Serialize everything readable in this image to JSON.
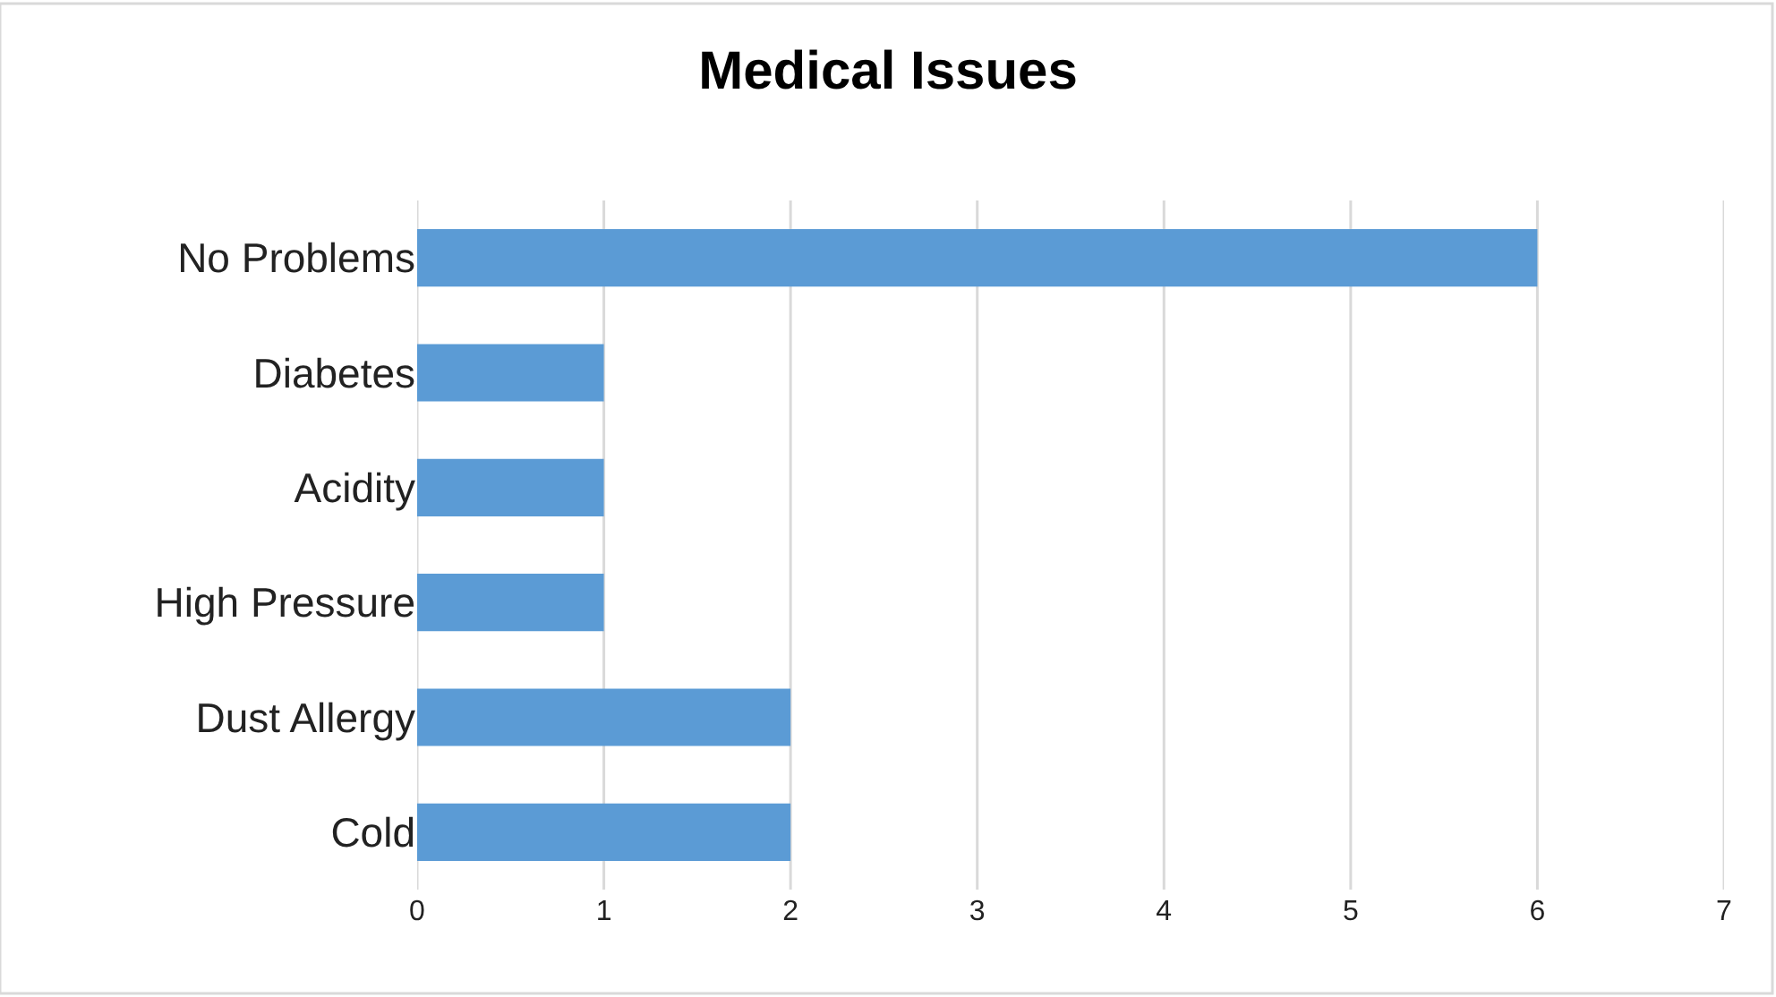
{
  "chart_data": {
    "type": "bar",
    "title": "Medical Issues",
    "orientation": "horizontal",
    "categories": [
      "No Problems",
      "Diabetes",
      "Acidity",
      "High Pressure",
      "Dust Allergy",
      "Cold"
    ],
    "values": [
      6,
      1,
      1,
      1,
      2,
      2
    ],
    "color": "#5b9bd5",
    "xlim": [
      0,
      7
    ],
    "xticks": [
      0,
      1,
      2,
      3,
      4,
      5,
      6,
      7
    ],
    "grid": "x"
  }
}
